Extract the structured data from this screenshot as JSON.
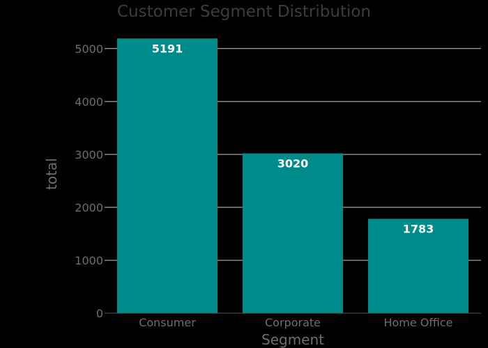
{
  "chart_data": {
    "type": "bar",
    "title": "Customer Segment Distribution",
    "xlabel": "Segment",
    "ylabel": "total",
    "categories": [
      "Consumer",
      "Corporate",
      "Home Office"
    ],
    "values": [
      5191,
      3020,
      1783
    ],
    "data_labels": [
      "5191",
      "3020",
      "1783"
    ],
    "ylim": [
      0,
      5300
    ],
    "yticks": [
      0,
      1000,
      2000,
      3000,
      4000,
      5000
    ],
    "ytick_labels": [
      "0",
      "1000",
      "2000",
      "3000",
      "4000",
      "5000"
    ],
    "grid": true,
    "legend": "none"
  },
  "colors": {
    "background": "#000000",
    "bar": "#008b8b",
    "bar_label": "#ffffff",
    "gridline": "#c8c8c8",
    "title": "#3c3c3c",
    "axis_text": "#6e6e6e",
    "axis_line": "#555555"
  }
}
